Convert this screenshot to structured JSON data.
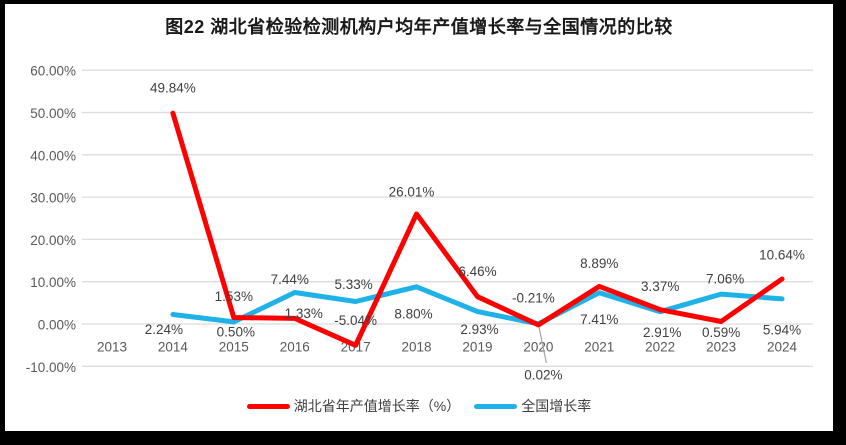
{
  "figure": {
    "frame_color": "#000000",
    "background_color": "#ffffff"
  },
  "chart_data": {
    "type": "line",
    "title": "图22 湖北省检验检测机构户均年产值增长率与全国情况的比较",
    "categories": [
      "2013",
      "2014",
      "2015",
      "2016",
      "2017",
      "2018",
      "2019",
      "2020",
      "2021",
      "2022",
      "2023",
      "2024"
    ],
    "series": [
      {
        "name": "湖北省年产值增长率（%）",
        "color": "#FF0000",
        "values": [
          null,
          49.84,
          1.53,
          1.33,
          -5.04,
          26.01,
          6.46,
          -0.21,
          8.89,
          3.37,
          0.59,
          10.64
        ],
        "labels": [
          "",
          "49.84%",
          "1.53%",
          "1.33%",
          "-5.04%",
          "26.01%",
          "6.46%",
          "-0.21%",
          "8.89%",
          "3.37%",
          "0.59%",
          "10.64%"
        ]
      },
      {
        "name": "全国增长率",
        "color": "#1EB2E8",
        "values": [
          null,
          2.24,
          0.5,
          7.44,
          5.33,
          8.8,
          2.93,
          0.02,
          7.41,
          2.91,
          7.06,
          5.94
        ],
        "labels": [
          "",
          "2.24%",
          "0.50%",
          "7.44%",
          "5.33%",
          "8.80%",
          "2.93%",
          "0.02%",
          "7.41%",
          "2.91%",
          "7.06%",
          "5.94%"
        ]
      }
    ],
    "yticks": [
      60,
      50,
      40,
      30,
      20,
      10,
      0,
      -10
    ],
    "ytick_labels": [
      "60.00%",
      "50.00%",
      "40.00%",
      "30.00%",
      "20.00%",
      "10.00%",
      "0.00%",
      "-10.00%"
    ],
    "ylim": [
      -10,
      60
    ],
    "xlabel": "",
    "ylabel": "",
    "grid": true,
    "legend_position": "bottom",
    "grid_color": "#DCDCDC",
    "axis_label_color": "#595959",
    "data_label_color": "#404040",
    "leader_line_color": "#A6A6A6",
    "annotations": [
      {
        "type": "leader-line",
        "series": 1,
        "category": "2020",
        "note": "0.02% label displaced below axis with gray leader line"
      }
    ]
  }
}
